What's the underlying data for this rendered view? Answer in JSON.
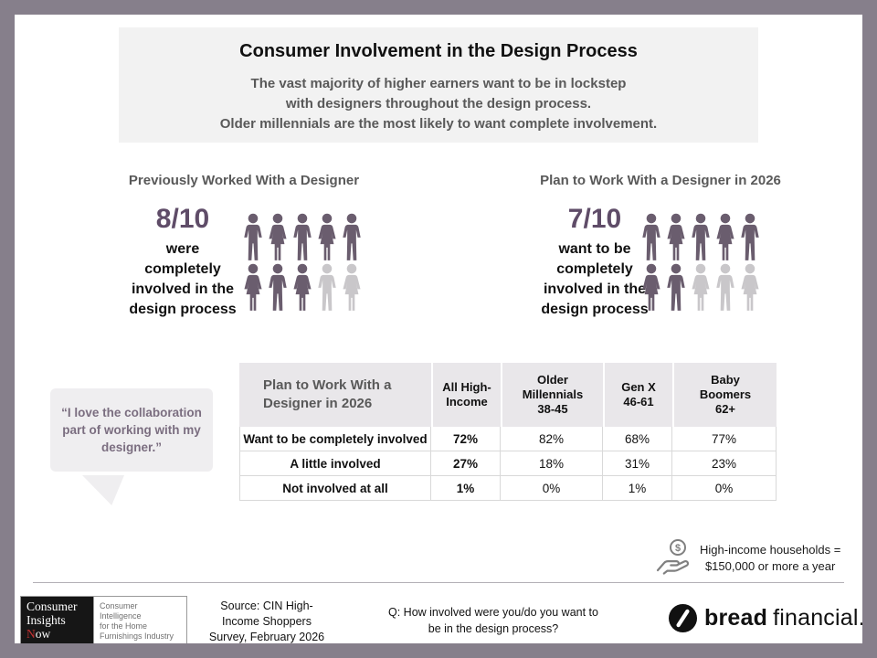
{
  "colors": {
    "frame_border": "#867f8b",
    "accent_purple": "#5f4c68",
    "person_filled": "#6a5d6e",
    "person_empty": "#c9c7ca",
    "heading_gray": "#595959",
    "panel_bg": "#f2f2f2",
    "table_header_bg": "#e9e7ea",
    "quote_text": "#7b6e80",
    "logo_red": "#c43030"
  },
  "header": {
    "title": "Consumer Involvement in the Design Process",
    "subtitle_lines": [
      "The vast majority of higher earners want to be in lockstep",
      "with designers throughout the design process.",
      "Older millennials are the most likely to want complete involvement."
    ]
  },
  "left_stat": {
    "heading": "Previously Worked With a Designer",
    "ratio": "8/10",
    "lines": [
      "were",
      "completely",
      "involved in the",
      "design process"
    ],
    "filled": 8,
    "total": 10
  },
  "right_stat": {
    "heading": "Plan to Work With a Designer in 2026",
    "ratio": "7/10",
    "lines": [
      "want to be",
      "completely",
      "involved in the",
      "design process"
    ],
    "filled": 7,
    "total": 10
  },
  "quote": {
    "text": "“I love the collaboration part of working with my designer.”"
  },
  "table": {
    "title": "Plan to Work With a Designer in 2026",
    "columns": [
      {
        "lines": [
          "All High-",
          "Income"
        ]
      },
      {
        "lines": [
          "Older",
          "Millennials",
          "38-45"
        ]
      },
      {
        "lines": [
          "Gen X",
          "46-61"
        ]
      },
      {
        "lines": [
          "Baby",
          "Boomers",
          "62+"
        ]
      }
    ],
    "rows": [
      {
        "label": "Want to be completely involved",
        "values": [
          "72%",
          "82%",
          "68%",
          "77%"
        ]
      },
      {
        "label": "A little involved",
        "values": [
          "27%",
          "18%",
          "31%",
          "23%"
        ]
      },
      {
        "label": "Not involved at all",
        "values": [
          "1%",
          "0%",
          "1%",
          "0%"
        ]
      }
    ]
  },
  "note": {
    "lines": [
      "High-income households =",
      "$150,000 or more a year"
    ]
  },
  "footer": {
    "logo": {
      "line1": "Consumer",
      "line2": "Insights",
      "now_accent": "N",
      "now_rest": "ow",
      "tagline": [
        "Consumer Intelligence",
        "for the Home",
        "Furnishings Industry"
      ]
    },
    "source_lines": [
      "Source: CIN High-",
      "Income Shoppers",
      "Survey, February 2026"
    ],
    "question_lines": [
      "Q: How involved were you/do you want to",
      "be in the design process?"
    ],
    "brand": {
      "bold": "bread",
      "light": "financial."
    }
  },
  "chart_data": [
    {
      "type": "pictograph",
      "title": "Previously Worked With a Designer",
      "value": 8,
      "total": 10,
      "label": "8/10 were completely involved in the design process"
    },
    {
      "type": "pictograph",
      "title": "Plan to Work With a Designer in 2026",
      "value": 7,
      "total": 10,
      "label": "7/10 want to be completely involved in the design process"
    },
    {
      "type": "table",
      "title": "Plan to Work With a Designer in 2026",
      "categories": [
        "All High-Income",
        "Older Millennials 38-45",
        "Gen X 46-61",
        "Baby Boomers 62+"
      ],
      "series": [
        {
          "name": "Want to be completely involved",
          "values": [
            72,
            82,
            68,
            77
          ]
        },
        {
          "name": "A little involved",
          "values": [
            27,
            18,
            31,
            23
          ]
        },
        {
          "name": "Not involved at all",
          "values": [
            1,
            0,
            1,
            0
          ]
        }
      ],
      "unit": "%"
    }
  ]
}
